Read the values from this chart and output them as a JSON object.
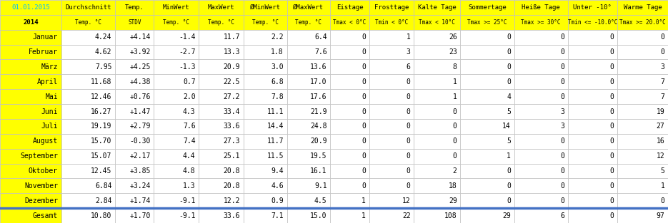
{
  "header_date": "01.01.2015",
  "headers1": [
    "Durchschnitt",
    "Temp.",
    "MinWert",
    "MaxWert",
    "ØMinWert",
    "ØMaxWert",
    "Eistage",
    "Frosttage",
    "Kalte Tage",
    "Sommertage",
    "Heiße Tage",
    "Unter -10°",
    "Warme Tage"
  ],
  "headers2": [
    "2014",
    "Temp. °C",
    "STDV",
    "Temp. °C",
    "Temp. °C",
    "Temp. °C",
    "Temp. °C",
    "Tmax < 0°C",
    "Tmin < 0°C",
    "Tmax < 10°C",
    "Tmax >= 25°C",
    "Tmax >= 30°C",
    "Tmin <= -10.0°C",
    "Tmax >= 20.0°C"
  ],
  "months": [
    "Januar",
    "Februar",
    "März",
    "April",
    "Mai",
    "Juni",
    "Juli",
    "August",
    "September",
    "Oktober",
    "November",
    "Dezember"
  ],
  "data": [
    [
      "4.24",
      "+4.14",
      "-1.4",
      "11.7",
      "2.2",
      "6.4",
      "0",
      "1",
      "26",
      "0",
      "0",
      "0",
      "0"
    ],
    [
      "4.62",
      "+3.92",
      "-2.7",
      "13.3",
      "1.8",
      "7.6",
      "0",
      "3",
      "23",
      "0",
      "0",
      "0",
      "0"
    ],
    [
      "7.95",
      "+4.25",
      "-1.3",
      "20.9",
      "3.0",
      "13.6",
      "0",
      "6",
      "8",
      "0",
      "0",
      "0",
      "3"
    ],
    [
      "11.68",
      "+4.38",
      "0.7",
      "22.5",
      "6.8",
      "17.0",
      "0",
      "0",
      "1",
      "0",
      "0",
      "0",
      "7"
    ],
    [
      "12.46",
      "+0.76",
      "2.0",
      "27.2",
      "7.8",
      "17.6",
      "0",
      "0",
      "1",
      "4",
      "0",
      "0",
      "7"
    ],
    [
      "16.27",
      "+1.47",
      "4.3",
      "33.4",
      "11.1",
      "21.9",
      "0",
      "0",
      "0",
      "5",
      "3",
      "0",
      "19"
    ],
    [
      "19.19",
      "+2.79",
      "7.6",
      "33.6",
      "14.4",
      "24.8",
      "0",
      "0",
      "0",
      "14",
      "3",
      "0",
      "27"
    ],
    [
      "15.70",
      "-0.30",
      "7.4",
      "27.3",
      "11.7",
      "20.9",
      "0",
      "0",
      "0",
      "5",
      "0",
      "0",
      "16"
    ],
    [
      "15.07",
      "+2.17",
      "4.4",
      "25.1",
      "11.5",
      "19.5",
      "0",
      "0",
      "0",
      "1",
      "0",
      "0",
      "12"
    ],
    [
      "12.45",
      "+3.85",
      "4.8",
      "20.8",
      "9.4",
      "16.1",
      "0",
      "0",
      "2",
      "0",
      "0",
      "0",
      "5"
    ],
    [
      "6.84",
      "+3.24",
      "1.3",
      "20.8",
      "4.6",
      "9.1",
      "0",
      "0",
      "18",
      "0",
      "0",
      "0",
      "1"
    ],
    [
      "2.84",
      "+1.74",
      "-9.1",
      "12.2",
      "0.9",
      "4.5",
      "1",
      "12",
      "29",
      "0",
      "0",
      "0",
      "0"
    ]
  ],
  "gesamt": [
    "10.80",
    "+1.70",
    "-9.1",
    "33.6",
    "7.1",
    "15.0",
    "1",
    "22",
    "108",
    "29",
    "6",
    "0",
    "97"
  ],
  "yellow_bg": "#FFFF00",
  "white_bg": "#FFFFFF",
  "gesamt_sep_color": "#4472C4",
  "grid_color": "#C0C0C0",
  "text_color": "#000000",
  "date_text_color": "#00BFFF",
  "col_widths_raw": [
    82,
    72,
    52,
    60,
    60,
    58,
    58,
    52,
    60,
    62,
    72,
    72,
    66,
    68
  ]
}
